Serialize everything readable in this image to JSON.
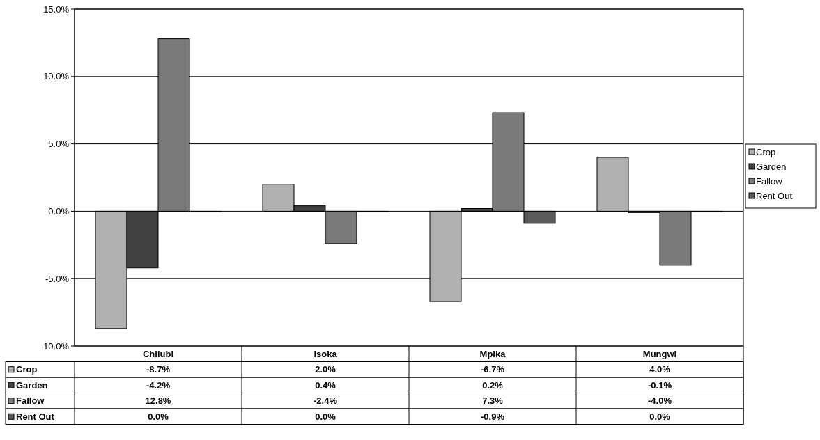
{
  "chart_data": {
    "type": "bar",
    "categories": [
      "Chilubi",
      "Isoka",
      "Mpika",
      "Mungwi"
    ],
    "series": [
      {
        "name": "Crop",
        "color": "#b0b0b0",
        "values": [
          -8.7,
          2.0,
          -6.7,
          4.0
        ],
        "value_labels": [
          "-8.7%",
          "2.0%",
          "-6.7%",
          "4.0%"
        ]
      },
      {
        "name": "Garden",
        "color": "#404040",
        "values": [
          -4.2,
          0.4,
          0.2,
          -0.1
        ],
        "value_labels": [
          "-4.2%",
          "0.4%",
          "0.2%",
          "-0.1%"
        ]
      },
      {
        "name": "Fallow",
        "color": "#7a7a7a",
        "values": [
          12.8,
          -2.4,
          7.3,
          -4.0
        ],
        "value_labels": [
          "12.8%",
          "-2.4%",
          "7.3%",
          "-4.0%"
        ]
      },
      {
        "name": "Rent Out",
        "color": "#5a5a5a",
        "values": [
          0.0,
          0.0,
          -0.9,
          0.0
        ],
        "value_labels": [
          "0.0%",
          "0.0%",
          "-0.9%",
          "0.0%"
        ]
      }
    ],
    "ylim": [
      -10,
      15
    ],
    "yticks": [
      {
        "value": -10,
        "label": "-10.0%"
      },
      {
        "value": -5,
        "label": "-5.0%"
      },
      {
        "value": 0,
        "label": "0.0%"
      },
      {
        "value": 5,
        "label": "5.0%"
      },
      {
        "value": 10,
        "label": "10.0%"
      },
      {
        "value": 15,
        "label": "15.0%"
      }
    ],
    "grid": "y",
    "legend": "right"
  }
}
